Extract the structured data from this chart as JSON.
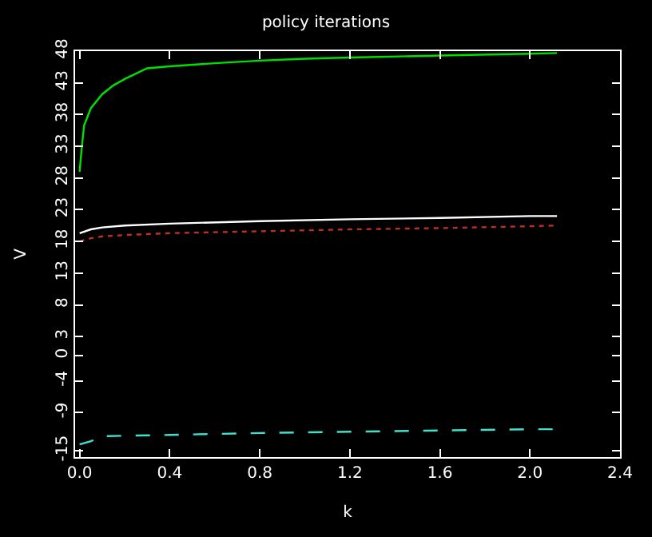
{
  "chart_data": {
    "type": "line",
    "title": "policy iterations",
    "xlabel": "k",
    "ylabel": "V",
    "xlim": [
      -0.02,
      2.4
    ],
    "xticks": [
      {
        "value": 0,
        "label": "0.0"
      },
      0.4,
      0.8,
      1.2,
      1.6,
      {
        "value": 2,
        "label": "2.0"
      },
      2.4
    ],
    "ylim": [
      -16,
      48
    ],
    "yticks": [
      -15,
      -9,
      -4,
      0,
      3,
      8,
      13,
      18,
      23,
      28,
      33,
      38,
      43,
      48
    ],
    "grid": false,
    "series": [
      {
        "color": "#00e000",
        "line_style": "solid",
        "x": [
          0,
          0.01,
          0.02,
          0.05,
          0.1,
          0.15,
          0.2,
          0.3,
          0.4,
          0.6,
          0.8,
          1.0,
          1.2,
          1.6,
          2.0,
          2.12
        ],
        "values": [
          29,
          33,
          36.3,
          39,
          41.2,
          42.6,
          43.6,
          45.3,
          45.6,
          46.1,
          46.5,
          46.8,
          47,
          47.3,
          47.6,
          47.7
        ]
      },
      {
        "color": "#ffffff",
        "line_style": "solid",
        "x": [
          0,
          0.05,
          0.1,
          0.2,
          0.4,
          0.8,
          1.2,
          1.6,
          2.0,
          2.12
        ],
        "values": [
          19.3,
          19.9,
          20.2,
          20.5,
          20.8,
          21.2,
          21.5,
          21.7,
          22,
          22
        ]
      },
      {
        "color": "#c03020",
        "line_style": "dotted",
        "x": [
          0,
          0.05,
          0.1,
          0.2,
          0.4,
          0.8,
          1.2,
          1.6,
          2.0,
          2.12
        ],
        "values": [
          18,
          18.5,
          18.8,
          19,
          19.3,
          19.6,
          19.9,
          20.1,
          20.4,
          20.5
        ]
      },
      {
        "color": "#40e0d0",
        "line_style": "dashed",
        "x": [
          0,
          0.05,
          0.1,
          0.4,
          0.8,
          1.2,
          1.6,
          2.0,
          2.1,
          2.12
        ],
        "values": [
          -14,
          -13.5,
          -12.7,
          -12.5,
          -12.2,
          -12,
          -11.8,
          -11.6,
          -11.6,
          -11.4
        ]
      }
    ]
  }
}
